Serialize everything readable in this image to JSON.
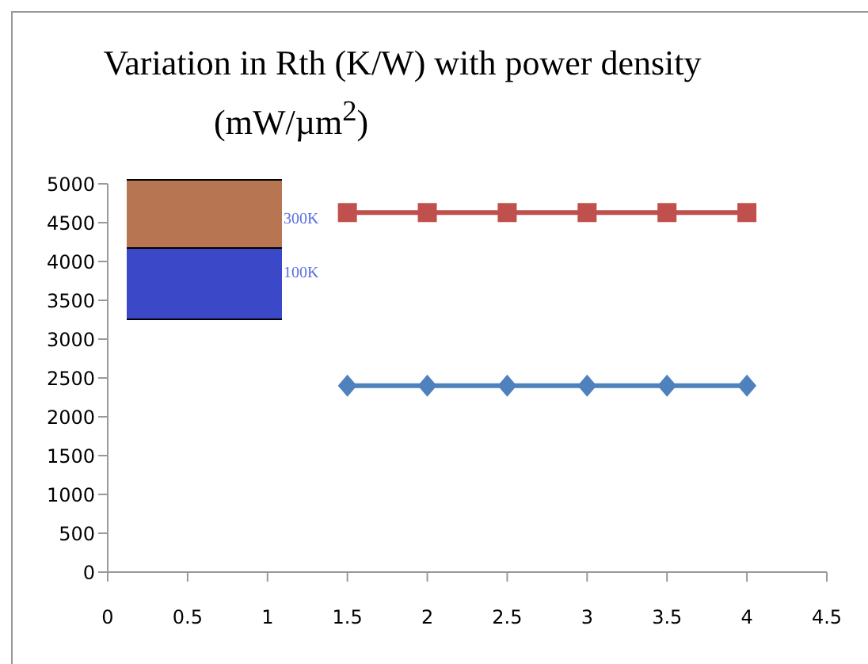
{
  "chart_data": {
    "type": "line",
    "title": "Variation in Rth (K/W) with power density",
    "subtitle": "(mW/µm$^{2}$)",
    "x": [
      1.5,
      2,
      2.5,
      3,
      3.5,
      4
    ],
    "series": [
      {
        "color": "#c0504d",
        "marker": "square",
        "values": [
          4630,
          4630,
          4630,
          4630,
          4630,
          4630
        ]
      },
      {
        "color": "#4f81bd",
        "marker": "diamond",
        "values": [
          2400,
          2400,
          2400,
          2400,
          2400,
          2400
        ]
      }
    ],
    "xlim": [
      0,
      4.5
    ],
    "xticks": [
      0,
      0.5,
      1,
      1.5,
      2,
      2.5,
      3,
      3.5,
      4,
      4.5
    ],
    "ylim": [
      0,
      5000
    ],
    "yticks": [
      0,
      500,
      1000,
      1500,
      2000,
      2500,
      3000,
      3500,
      4000,
      4500,
      5000
    ],
    "annotations": [
      "300K",
      "100K"
    ]
  }
}
